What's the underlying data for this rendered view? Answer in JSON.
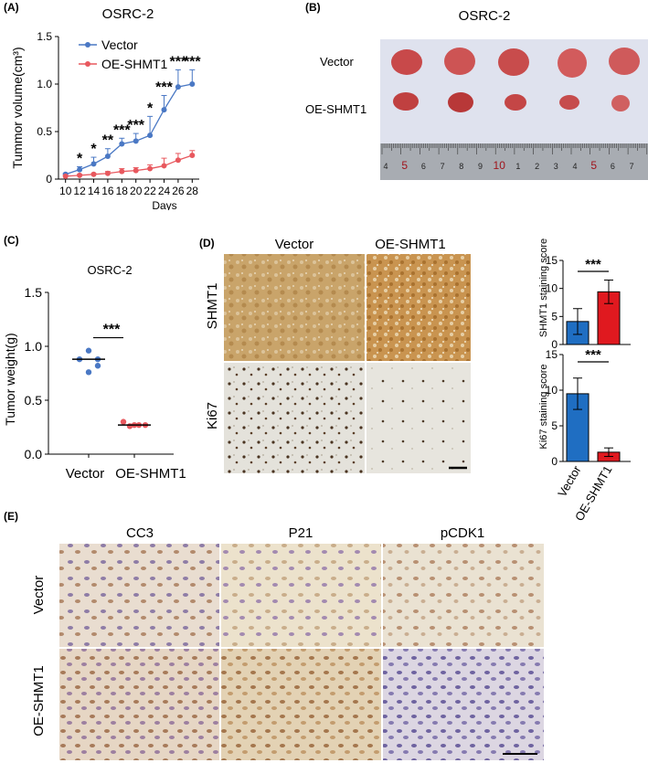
{
  "panels": {
    "A": "(A)",
    "B": "(B)",
    "C": "(C)",
    "D": "(D)",
    "E": "(E)"
  },
  "panel_b": {
    "title": "OSRC-2",
    "row_labels": [
      "Vector",
      "OE-SHMT1"
    ],
    "ruler_numbers": [
      "4",
      "5",
      "6",
      "7",
      "8",
      "9",
      "10",
      "1",
      "2",
      "3",
      "4",
      "5",
      "6",
      "7"
    ]
  },
  "panel_d": {
    "col_labels": [
      "Vector",
      "OE-SHMT1"
    ],
    "row_labels": [
      "SHMT1",
      "Ki67"
    ]
  },
  "panel_e": {
    "col_labels": [
      "CC3",
      "P21",
      "pCDK1"
    ],
    "row_labels": [
      "Vector",
      "OE-SHMT1"
    ]
  },
  "chart_data": [
    {
      "id": "A",
      "type": "line",
      "title": "OSRC-2",
      "xlabel": "Days",
      "ylabel": "Tummor volume(cm³)",
      "x": [
        10,
        12,
        14,
        16,
        18,
        20,
        22,
        24,
        26,
        28
      ],
      "xlim": [
        9,
        29
      ],
      "ylim": [
        0,
        1.5
      ],
      "yticks": [
        "0",
        "0.5",
        "1.0",
        "1.5"
      ],
      "legend": "top-left",
      "series": [
        {
          "name": "Vector",
          "color": "#4a78c4",
          "values": [
            0.05,
            0.1,
            0.16,
            0.24,
            0.37,
            0.4,
            0.46,
            0.73,
            0.97,
            1.0
          ],
          "errors": [
            0.01,
            0.03,
            0.07,
            0.08,
            0.06,
            0.08,
            0.2,
            0.15,
            0.18,
            0.15
          ]
        },
        {
          "name": "OE-SHMT1",
          "color": "#e8585e",
          "values": [
            0.03,
            0.04,
            0.05,
            0.06,
            0.08,
            0.09,
            0.11,
            0.14,
            0.2,
            0.25
          ],
          "errors": [
            0.01,
            0.01,
            0.01,
            0.02,
            0.03,
            0.03,
            0.04,
            0.08,
            0.07,
            0.05
          ]
        }
      ],
      "significance": [
        "",
        "*",
        "*",
        "**",
        "***",
        "***",
        "*",
        "***",
        "***",
        "***"
      ]
    },
    {
      "id": "C",
      "type": "scatter",
      "title": "OSRC-2",
      "ylabel": "Tumor weight(g)",
      "categories": [
        "Vector",
        "OE-SHMT1"
      ],
      "ylim": [
        0,
        1.5
      ],
      "yticks": [
        "0.0",
        "0.5",
        "1.0",
        "1.5"
      ],
      "series": [
        {
          "name": "Vector",
          "color": "#4a78c4",
          "values": [
            0.96,
            0.88,
            0.88,
            0.82,
            0.76
          ],
          "median": 0.88
        },
        {
          "name": "OE-SHMT1",
          "color": "#e8585e",
          "values": [
            0.3,
            0.27,
            0.26,
            0.27,
            0.27
          ],
          "median": 0.27
        }
      ],
      "significance": "***"
    },
    {
      "id": "D-top",
      "type": "bar",
      "ylabel": "SHMT1 staining score",
      "categories": [
        "Vector",
        "OE-SHMT1"
      ],
      "values": [
        4.1,
        9.4
      ],
      "errors": [
        2.3,
        2.1
      ],
      "colors": [
        "#1f6ec2",
        "#e0191f"
      ],
      "ylim": [
        0,
        15
      ],
      "yticks": [
        "0",
        "5",
        "10",
        "15"
      ],
      "significance": "***"
    },
    {
      "id": "D-bottom",
      "type": "bar",
      "ylabel": "Ki67 staining score",
      "categories": [
        "Vector",
        "OE-SHMT1"
      ],
      "values": [
        9.5,
        1.3
      ],
      "errors": [
        2.2,
        0.6
      ],
      "colors": [
        "#1f6ec2",
        "#e0191f"
      ],
      "ylim": [
        0,
        15
      ],
      "yticks": [
        "0",
        "5",
        "10",
        "15"
      ],
      "significance": "***"
    }
  ]
}
